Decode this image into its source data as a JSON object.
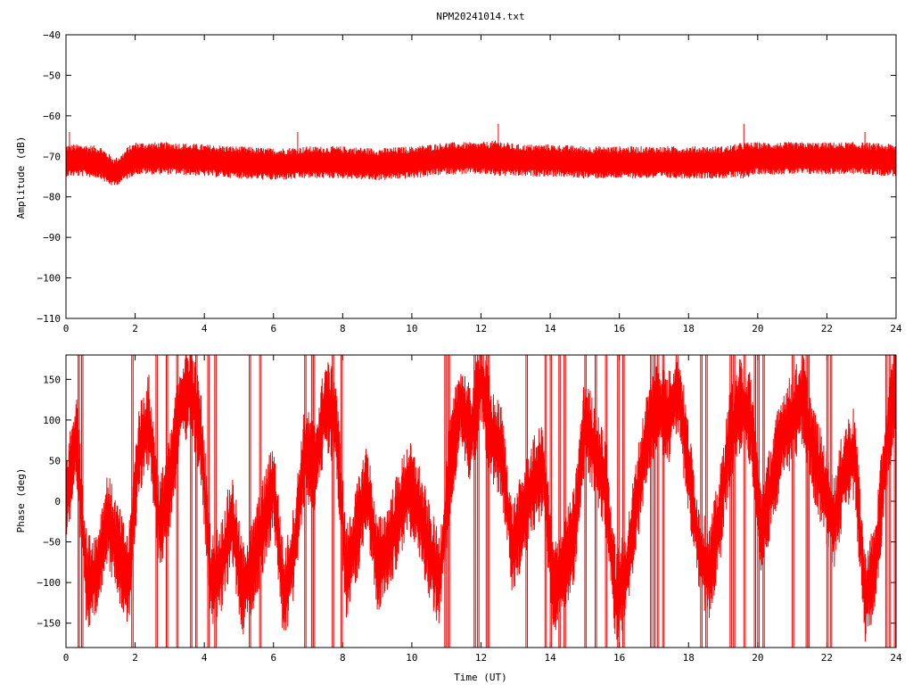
{
  "title": "NPM20241014.txt",
  "colors": {
    "series": "#ff0000",
    "axis": "#000000",
    "grid": "#000000",
    "background": "#ffffff"
  },
  "chart_data": [
    {
      "type": "line",
      "title": "NPM20241014.txt",
      "xlabel": "",
      "ylabel": "Amplitude (dB)",
      "xlim": [
        0,
        24
      ],
      "ylim": [
        -110,
        -40
      ],
      "xticks": [
        "0",
        "2",
        "4",
        "6",
        "8",
        "10",
        "12",
        "14",
        "16",
        "18",
        "20",
        "22",
        "24"
      ],
      "yticks": [
        "-40",
        "-50",
        "-60",
        "-70",
        "-80",
        "-90",
        "-100",
        "-110"
      ],
      "grid": false,
      "series": [
        {
          "x": [
            0,
            0.5,
            1.0,
            1.2,
            1.4,
            1.6,
            1.8,
            2,
            3,
            4,
            5,
            6,
            7,
            8,
            9,
            10,
            11,
            12,
            12.5,
            13,
            14,
            15,
            16,
            17,
            18,
            19,
            19.6,
            20,
            21,
            22,
            23,
            24
          ],
          "center": [
            -71,
            -71,
            -71.5,
            -73,
            -74,
            -73,
            -71.5,
            -70.5,
            -70.5,
            -71,
            -71.5,
            -72,
            -71.5,
            -71.5,
            -72,
            -71.5,
            -70.5,
            -70.5,
            -70.5,
            -71,
            -71,
            -71.5,
            -71.5,
            -71.5,
            -71.5,
            -71.5,
            -71,
            -70.5,
            -70.5,
            -70.5,
            -70.5,
            -71
          ],
          "spread": [
            4,
            4,
            4,
            4,
            3.5,
            3.5,
            4,
            4,
            4,
            4,
            4,
            4,
            4,
            4,
            4,
            4,
            4,
            4,
            4.5,
            4,
            4,
            4,
            4,
            4,
            4,
            4,
            4.5,
            4,
            4,
            4,
            4,
            4
          ],
          "peaks": [
            {
              "x": 12.5,
              "y": -62
            },
            {
              "x": 19.6,
              "y": -62
            },
            {
              "x": 0.1,
              "y": -64
            },
            {
              "x": 23.1,
              "y": -64
            },
            {
              "x": 6.7,
              "y": -64
            }
          ]
        }
      ]
    },
    {
      "type": "line",
      "title": "",
      "xlabel": "Time (UT)",
      "ylabel": "Phase (deg)",
      "xlim": [
        0,
        24
      ],
      "ylim": [
        -180,
        180
      ],
      "xticks": [
        "0",
        "2",
        "4",
        "6",
        "8",
        "10",
        "12",
        "14",
        "16",
        "18",
        "20",
        "22",
        "24"
      ],
      "yticks": [
        "150",
        "100",
        "50",
        "0",
        "-50",
        "-100",
        "-150"
      ],
      "grid": false,
      "series": [
        {
          "x": [
            0,
            0.3,
            0.6,
            0.9,
            1.2,
            1.5,
            1.8,
            2.1,
            2.4,
            2.7,
            3.0,
            3.3,
            3.6,
            3.9,
            4.2,
            4.5,
            4.8,
            5.1,
            5.4,
            5.7,
            6.0,
            6.3,
            6.6,
            6.9,
            7.2,
            7.5,
            7.8,
            8.1,
            8.4,
            8.7,
            9.0,
            9.3,
            9.6,
            9.9,
            10.2,
            10.5,
            10.8,
            11.1,
            11.4,
            11.7,
            12.0,
            12.3,
            12.6,
            12.9,
            13.2,
            13.5,
            13.8,
            14.1,
            14.4,
            14.7,
            15.0,
            15.3,
            15.6,
            15.9,
            16.2,
            16.5,
            16.8,
            17.1,
            17.4,
            17.7,
            18.0,
            18.3,
            18.6,
            18.9,
            19.2,
            19.5,
            19.8,
            20.1,
            20.4,
            20.7,
            21.0,
            21.3,
            21.6,
            21.9,
            22.2,
            22.5,
            22.8,
            23.1,
            23.4,
            23.7,
            24.0
          ],
          "center": [
            0,
            80,
            -100,
            -90,
            -20,
            -60,
            -100,
            60,
            100,
            -30,
            20,
            120,
            140,
            80,
            -100,
            -80,
            -20,
            -110,
            -80,
            -30,
            20,
            -120,
            -60,
            60,
            40,
            120,
            100,
            -90,
            -40,
            20,
            -80,
            -60,
            -20,
            20,
            -10,
            -60,
            -100,
            40,
            120,
            80,
            150,
            80,
            60,
            -60,
            -20,
            20,
            40,
            -110,
            -80,
            -40,
            100,
            60,
            20,
            -120,
            -90,
            0,
            80,
            120,
            100,
            140,
            40,
            -60,
            -90,
            -20,
            80,
            120,
            100,
            -40,
            20,
            80,
            100,
            130,
            60,
            20,
            -30,
            40,
            60,
            -120,
            -80,
            60,
            150
          ],
          "spread": 45,
          "wraps": [
            0.35,
            0.45,
            1.9,
            2.6,
            2.9,
            3.2,
            3.6,
            3.75,
            4.1,
            4.3,
            5.3,
            5.6,
            6.9,
            7.1,
            7.15,
            7.7,
            7.95,
            10.95,
            11.05,
            11.8,
            11.9,
            12.15,
            12.2,
            13.3,
            13.85,
            14.0,
            14.25,
            14.4,
            15.0,
            15.3,
            15.6,
            15.95,
            16.1,
            16.9,
            17.0,
            17.1,
            17.25,
            18.35,
            18.5,
            19.2,
            19.3,
            19.6,
            19.9,
            20.0,
            20.15,
            21.0,
            21.4,
            21.45,
            22.0,
            22.1,
            23.7,
            23.8,
            23.95
          ]
        }
      ]
    }
  ]
}
